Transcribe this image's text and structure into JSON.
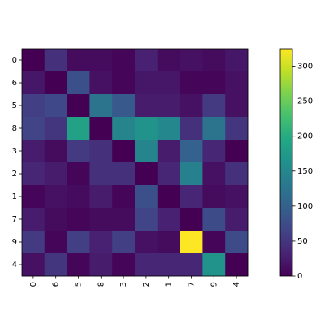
{
  "chart_data": {
    "type": "heatmap",
    "colormap": "viridis",
    "x_categories": [
      "0",
      "6",
      "5",
      "8",
      "3",
      "2",
      "1",
      "7",
      "9",
      "4"
    ],
    "y_categories": [
      "0",
      "6",
      "5",
      "8",
      "3",
      "2",
      "1",
      "7",
      "9",
      "4"
    ],
    "values": [
      [
        0,
        45,
        10,
        10,
        5,
        30,
        10,
        15,
        10,
        20
      ],
      [
        20,
        0,
        80,
        15,
        5,
        20,
        20,
        5,
        5,
        15
      ],
      [
        60,
        70,
        0,
        125,
        90,
        25,
        25,
        15,
        55,
        15
      ],
      [
        65,
        50,
        185,
        0,
        145,
        165,
        150,
        45,
        125,
        50
      ],
      [
        25,
        10,
        55,
        45,
        0,
        145,
        25,
        100,
        35,
        0
      ],
      [
        35,
        25,
        5,
        45,
        45,
        0,
        35,
        140,
        15,
        45
      ],
      [
        5,
        15,
        10,
        25,
        5,
        80,
        0,
        35,
        10,
        15
      ],
      [
        25,
        10,
        5,
        10,
        10,
        65,
        30,
        0,
        75,
        25
      ],
      [
        55,
        5,
        60,
        30,
        60,
        15,
        10,
        325,
        5,
        75
      ],
      [
        15,
        50,
        5,
        25,
        5,
        35,
        35,
        35,
        165,
        0
      ]
    ],
    "zlim": [
      0,
      325
    ],
    "zticks": [
      0,
      50,
      100,
      150,
      200,
      250,
      300
    ]
  }
}
